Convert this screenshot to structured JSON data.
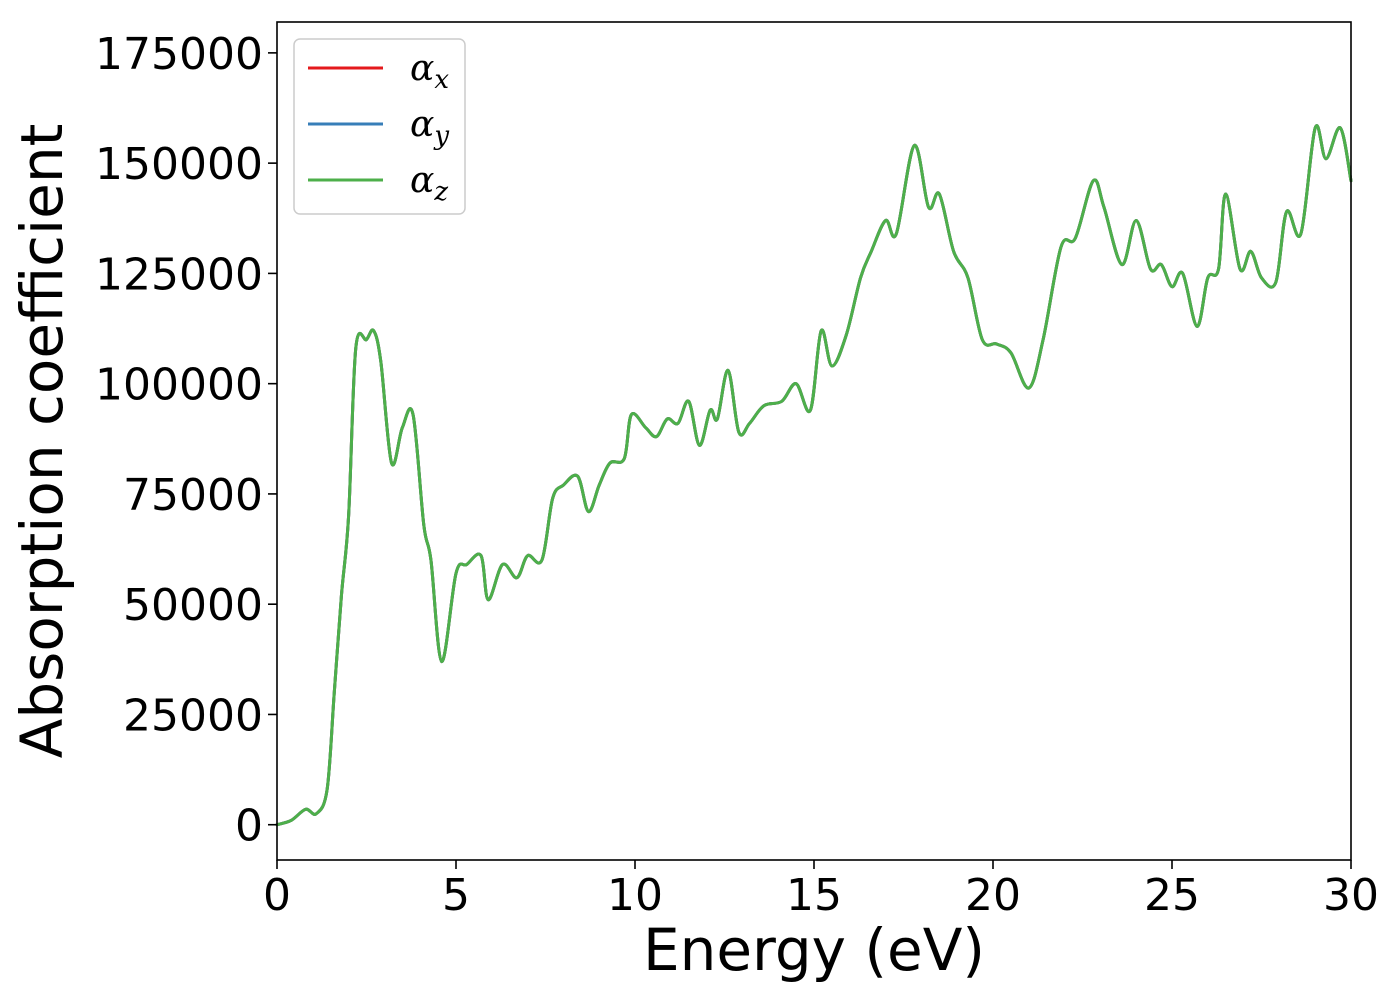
{
  "chart_data": {
    "type": "line",
    "title": "",
    "xlabel": "Energy (eV)",
    "ylabel": "Absorption coefficient",
    "xlim": [
      0,
      30
    ],
    "ylim": [
      -8000,
      182000
    ],
    "xticks": [
      0,
      5,
      10,
      15,
      20,
      25,
      30
    ],
    "yticks": [
      0,
      25000,
      50000,
      75000,
      100000,
      125000,
      150000,
      175000
    ],
    "grid": false,
    "legend_position": "top-left",
    "x": [
      0,
      0.4,
      0.8,
      1.1,
      1.4,
      1.6,
      1.8,
      2.0,
      2.2,
      2.5,
      2.7,
      2.9,
      3.2,
      3.5,
      3.8,
      4.1,
      4.3,
      4.6,
      5.0,
      5.3,
      5.7,
      5.9,
      6.3,
      6.7,
      7.0,
      7.4,
      7.7,
      8.0,
      8.4,
      8.7,
      9.0,
      9.3,
      9.7,
      9.9,
      10.3,
      10.6,
      10.9,
      11.2,
      11.5,
      11.8,
      12.1,
      12.3,
      12.6,
      12.9,
      13.2,
      13.6,
      14.1,
      14.5,
      14.9,
      15.2,
      15.5,
      15.9,
      16.3,
      16.6,
      17.0,
      17.3,
      17.8,
      18.2,
      18.5,
      18.9,
      19.3,
      19.7,
      20.1,
      20.5,
      21.0,
      21.4,
      21.9,
      22.3,
      22.8,
      23.1,
      23.6,
      24.0,
      24.4,
      24.7,
      25.0,
      25.3,
      25.7,
      26.0,
      26.3,
      26.5,
      26.9,
      27.2,
      27.5,
      27.9,
      28.2,
      28.6,
      29.0,
      29.3,
      29.7,
      30.0
    ],
    "series": [
      {
        "name": "αx",
        "color": "#e41a1c",
        "values": [
          0,
          1000,
          3500,
          2500,
          8000,
          30000,
          52000,
          70000,
          108000,
          110000,
          112000,
          105000,
          82000,
          90000,
          93000,
          68000,
          60000,
          37000,
          57000,
          59000,
          61000,
          51000,
          59000,
          56000,
          61000,
          60000,
          74000,
          77000,
          79000,
          71000,
          77000,
          82000,
          83000,
          93000,
          90000,
          88000,
          92000,
          91000,
          96000,
          86000,
          94000,
          92000,
          103000,
          89000,
          91000,
          95000,
          96000,
          100000,
          94000,
          112000,
          104000,
          111000,
          124000,
          130000,
          137000,
          134000,
          154000,
          140000,
          143000,
          130000,
          124000,
          110000,
          109000,
          107000,
          99000,
          110000,
          131000,
          133000,
          146000,
          140000,
          127000,
          137000,
          126000,
          127000,
          122000,
          125000,
          113000,
          124000,
          126000,
          143000,
          126000,
          130000,
          124000,
          123000,
          139000,
          134000,
          158000,
          151000,
          158000,
          146000
        ]
      },
      {
        "name": "αy",
        "color": "#377eb8",
        "values": [
          0,
          1000,
          3500,
          2500,
          8000,
          30000,
          52000,
          70000,
          108000,
          110000,
          112000,
          105000,
          82000,
          90000,
          93000,
          68000,
          60000,
          37000,
          57000,
          59000,
          61000,
          51000,
          59000,
          56000,
          61000,
          60000,
          74000,
          77000,
          79000,
          71000,
          77000,
          82000,
          83000,
          93000,
          90000,
          88000,
          92000,
          91000,
          96000,
          86000,
          94000,
          92000,
          103000,
          89000,
          91000,
          95000,
          96000,
          100000,
          94000,
          112000,
          104000,
          111000,
          124000,
          130000,
          137000,
          134000,
          154000,
          140000,
          143000,
          130000,
          124000,
          110000,
          109000,
          107000,
          99000,
          110000,
          131000,
          133000,
          146000,
          140000,
          127000,
          137000,
          126000,
          127000,
          122000,
          125000,
          113000,
          124000,
          126000,
          143000,
          126000,
          130000,
          124000,
          123000,
          139000,
          134000,
          158000,
          151000,
          158000,
          146000
        ]
      },
      {
        "name": "αz",
        "color": "#4daf4a",
        "values": [
          0,
          1000,
          3500,
          2500,
          8000,
          30000,
          52000,
          70000,
          108000,
          110000,
          112000,
          105000,
          82000,
          90000,
          93000,
          68000,
          60000,
          37000,
          57000,
          59000,
          61000,
          51000,
          59000,
          56000,
          61000,
          60000,
          74000,
          77000,
          79000,
          71000,
          77000,
          82000,
          83000,
          93000,
          90000,
          88000,
          92000,
          91000,
          96000,
          86000,
          94000,
          92000,
          103000,
          89000,
          91000,
          95000,
          96000,
          100000,
          94000,
          112000,
          104000,
          111000,
          124000,
          130000,
          137000,
          134000,
          154000,
          140000,
          143000,
          130000,
          124000,
          110000,
          109000,
          107000,
          99000,
          110000,
          131000,
          133000,
          146000,
          140000,
          127000,
          137000,
          126000,
          127000,
          122000,
          125000,
          113000,
          124000,
          126000,
          143000,
          126000,
          130000,
          124000,
          123000,
          139000,
          134000,
          158000,
          151000,
          158000,
          146000
        ]
      }
    ],
    "legend": [
      {
        "symbol": "α",
        "subscript": "x"
      },
      {
        "symbol": "α",
        "subscript": "y"
      },
      {
        "symbol": "α",
        "subscript": "z"
      }
    ]
  }
}
